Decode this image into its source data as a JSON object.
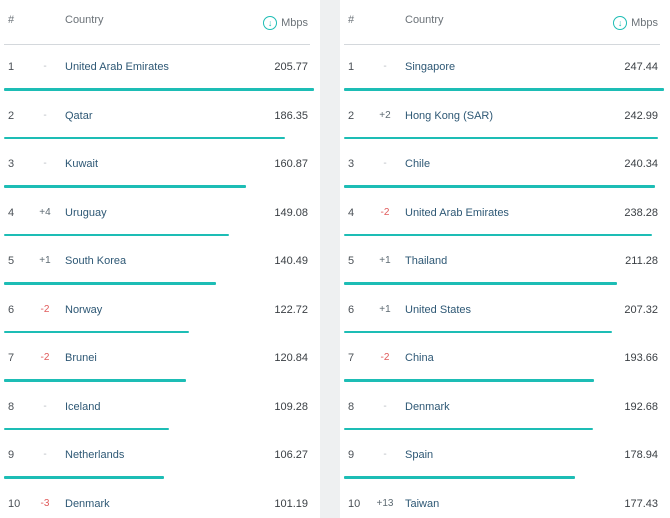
{
  "colors": {
    "accent": "#1dbdb5",
    "decline": "#e05a5a"
  },
  "icons": {
    "speed": "download-arrow-circle-icon"
  },
  "left": {
    "header": {
      "rank": "#",
      "country": "Country",
      "unit": "Mbps"
    },
    "max_speed": 205.77,
    "rows": [
      {
        "rank": "1",
        "change": "-",
        "country": "United Arab Emirates",
        "speed": "205.77",
        "value": 205.77
      },
      {
        "rank": "2",
        "change": "-",
        "country": "Qatar",
        "speed": "186.35",
        "value": 186.35
      },
      {
        "rank": "3",
        "change": "-",
        "country": "Kuwait",
        "speed": "160.87",
        "value": 160.87
      },
      {
        "rank": "4",
        "change": "+4",
        "country": "Uruguay",
        "speed": "149.08",
        "value": 149.08
      },
      {
        "rank": "5",
        "change": "+1",
        "country": "South Korea",
        "speed": "140.49",
        "value": 140.49
      },
      {
        "rank": "6",
        "change": "-2",
        "country": "Norway",
        "speed": "122.72",
        "value": 122.72
      },
      {
        "rank": "7",
        "change": "-2",
        "country": "Brunei",
        "speed": "120.84",
        "value": 120.84
      },
      {
        "rank": "8",
        "change": "-",
        "country": "Iceland",
        "speed": "109.28",
        "value": 109.28
      },
      {
        "rank": "9",
        "change": "-",
        "country": "Netherlands",
        "speed": "106.27",
        "value": 106.27
      },
      {
        "rank": "10",
        "change": "-3",
        "country": "Denmark",
        "speed": "101.19",
        "value": 101.19
      }
    ]
  },
  "right": {
    "header": {
      "rank": "#",
      "country": "Country",
      "unit": "Mbps"
    },
    "max_speed": 247.44,
    "rows": [
      {
        "rank": "1",
        "change": "-",
        "country": "Singapore",
        "speed": "247.44",
        "value": 247.44
      },
      {
        "rank": "2",
        "change": "+2",
        "country": "Hong Kong (SAR)",
        "speed": "242.99",
        "value": 242.99
      },
      {
        "rank": "3",
        "change": "-",
        "country": "Chile",
        "speed": "240.34",
        "value": 240.34
      },
      {
        "rank": "4",
        "change": "-2",
        "country": "United Arab Emirates",
        "speed": "238.28",
        "value": 238.28
      },
      {
        "rank": "5",
        "change": "+1",
        "country": "Thailand",
        "speed": "211.28",
        "value": 211.28
      },
      {
        "rank": "6",
        "change": "+1",
        "country": "United States",
        "speed": "207.32",
        "value": 207.32
      },
      {
        "rank": "7",
        "change": "-2",
        "country": "China",
        "speed": "193.66",
        "value": 193.66
      },
      {
        "rank": "8",
        "change": "-",
        "country": "Denmark",
        "speed": "192.68",
        "value": 192.68
      },
      {
        "rank": "9",
        "change": "-",
        "country": "Spain",
        "speed": "178.94",
        "value": 178.94
      },
      {
        "rank": "10",
        "change": "+13",
        "country": "Taiwan",
        "speed": "177.43",
        "value": 177.43
      }
    ]
  }
}
